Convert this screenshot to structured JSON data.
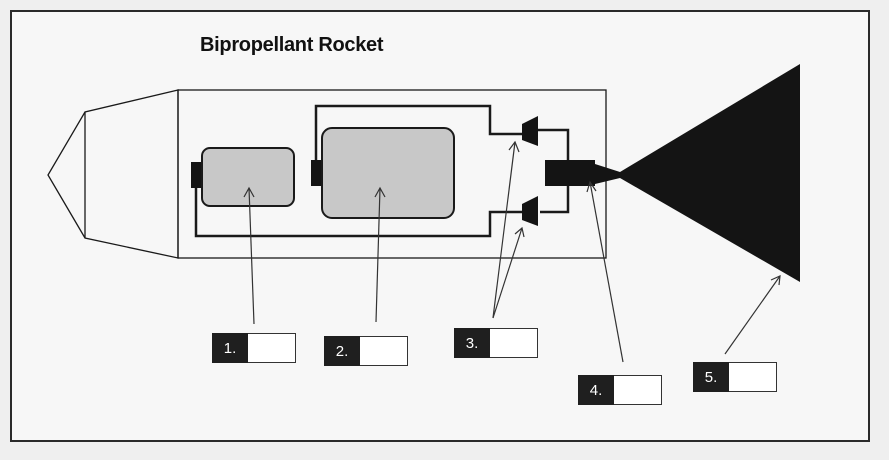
{
  "diagram": {
    "title": "Bipropellant Rocket",
    "labels": [
      {
        "id": "1",
        "text": "1."
      },
      {
        "id": "2",
        "text": "2."
      },
      {
        "id": "3",
        "text": "3."
      },
      {
        "id": "4",
        "text": "4."
      },
      {
        "id": "5",
        "text": "5."
      }
    ],
    "colors": {
      "tank_fill": "#c8c8c8",
      "outline": "#1a1a1a",
      "nozzle": "#141414",
      "label_bg": "#1f1f1f"
    }
  }
}
